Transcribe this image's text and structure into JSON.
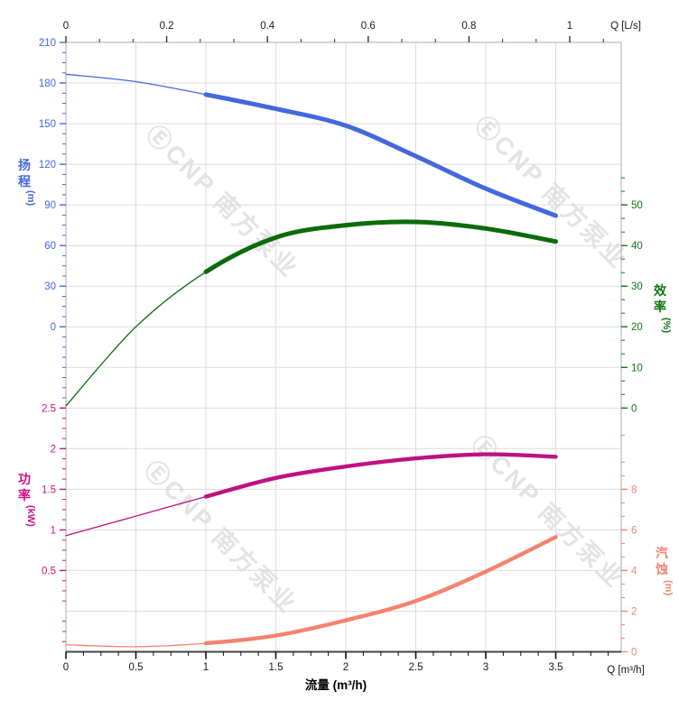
{
  "chart_data": {
    "type": "line",
    "title": "",
    "top_axis": {
      "title": "Q [L/s]",
      "min": 0,
      "max": 1,
      "tick_labels": [
        "0",
        "0.2",
        "0.4",
        "0.6",
        "0.8",
        "1"
      ],
      "tick_values": [
        0,
        0.2,
        0.4,
        0.6,
        0.8,
        1
      ]
    },
    "bottom_axis": {
      "title": "Q [m³/h]",
      "axis_label": "流量 (m³/h)",
      "min": 0,
      "max": 3.5,
      "tick_labels": [
        "0",
        "0.5",
        "1",
        "1.5",
        "2",
        "2.5",
        "3",
        "3.5"
      ],
      "tick_values": [
        0,
        0.5,
        1,
        1.5,
        2,
        2.5,
        3,
        3.5
      ]
    },
    "left_axis_head": {
      "title": "扬程",
      "unit": "(m)",
      "color": "#4169E1",
      "min": 0,
      "max": 210,
      "tick_labels": [
        "210",
        "180",
        "150",
        "120",
        "90",
        "60",
        "30",
        "0"
      ],
      "tick_values": [
        210,
        180,
        150,
        120,
        90,
        60,
        30,
        0
      ]
    },
    "right_axis_efficiency": {
      "title": "效率",
      "unit": "(%)",
      "color": "#117611",
      "min": 0,
      "max": 50,
      "tick_labels": [
        "50",
        "40",
        "30",
        "20",
        "10",
        "0"
      ],
      "tick_values": [
        50,
        40,
        30,
        20,
        10,
        0
      ]
    },
    "left_axis_power": {
      "title": "功率",
      "unit": "(kW)",
      "color": "#CE1186",
      "min": 0.5,
      "max": 2.5,
      "tick_labels": [
        "2.5",
        "2",
        "1.5",
        "1",
        "0.5"
      ],
      "tick_values": [
        2.5,
        2,
        1.5,
        1,
        0.5
      ]
    },
    "right_axis_npsh": {
      "title": "汽蚀",
      "unit": "(m)",
      "color": "#F5846F",
      "min": 0,
      "max": 8,
      "tick_labels": [
        "8",
        "6",
        "4",
        "2",
        "0"
      ],
      "tick_values": [
        8,
        6,
        4,
        2,
        0
      ]
    },
    "grid": true,
    "thin_below_flow": 1,
    "series": [
      {
        "name": "head-curve",
        "axis": "head",
        "color": "#4368DE",
        "x": [
          0,
          0.5,
          1,
          1.5,
          2,
          2.5,
          3,
          3.5
        ],
        "y": [
          186.5,
          181,
          171.5,
          161,
          148.5,
          126,
          102,
          82
        ]
      },
      {
        "name": "efficiency-curve",
        "axis": "eff",
        "color": "#0A6B0A",
        "x": [
          0,
          0.5,
          1,
          1.5,
          2,
          2.5,
          3,
          3.5
        ],
        "y": [
          0.5,
          20,
          33.5,
          42,
          45,
          45.8,
          44.2,
          41
        ]
      },
      {
        "name": "power-curve",
        "axis": "power",
        "color": "#C01080",
        "x": [
          0,
          0.5,
          1,
          1.5,
          2,
          2.5,
          3,
          3.5
        ],
        "y": [
          0.93,
          1.17,
          1.41,
          1.64,
          1.78,
          1.88,
          1.93,
          1.9
        ]
      },
      {
        "name": "npsh-curve",
        "axis": "npsh",
        "color": "#F4836E",
        "x": [
          0,
          0.5,
          1,
          1.5,
          2,
          2.5,
          3,
          3.5
        ],
        "y": [
          0.35,
          0.25,
          0.42,
          0.8,
          1.55,
          2.5,
          3.95,
          5.65
        ]
      }
    ]
  },
  "watermark": {
    "text": "ⒺCNP 南方泵业",
    "color": "#E3E3E3"
  }
}
